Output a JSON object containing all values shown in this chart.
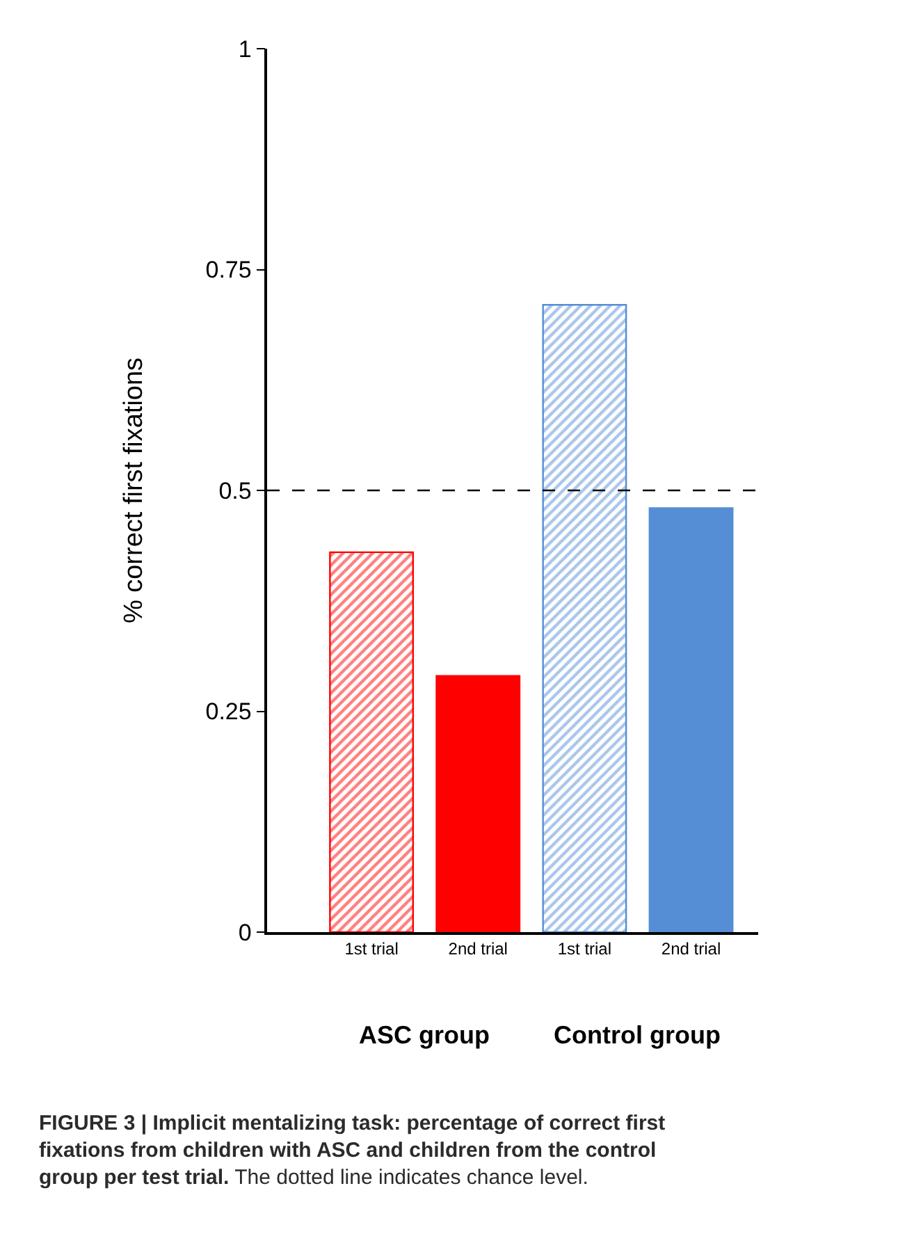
{
  "chart_data": {
    "type": "bar",
    "ylabel": "% correct first fixations",
    "categories": [
      "1st trial",
      "2nd trial",
      "1st trial",
      "2nd trial"
    ],
    "series": [
      {
        "colors": [
          "#ff0000",
          "#ff0000",
          "#558ed5",
          "#558ed5"
        ],
        "values": [
          0.43,
          0.29,
          0.71,
          0.48
        ]
      }
    ],
    "ylim": [
      0,
      1
    ],
    "yticks": [
      0,
      0.25,
      0.5,
      0.75,
      1
    ],
    "ref_lines": [
      {
        "axis": "y",
        "value": 0.5,
        "line_style": "dashed",
        "color": "#000000"
      }
    ],
    "annotations": [
      "ASC group",
      "Control group",
      "FIGURE 3 | Implicit mentalizing task: percentage of correct first fixations from children with ASC and children from the control group per test trial. The dotted line indicates chance level."
    ]
  }
}
